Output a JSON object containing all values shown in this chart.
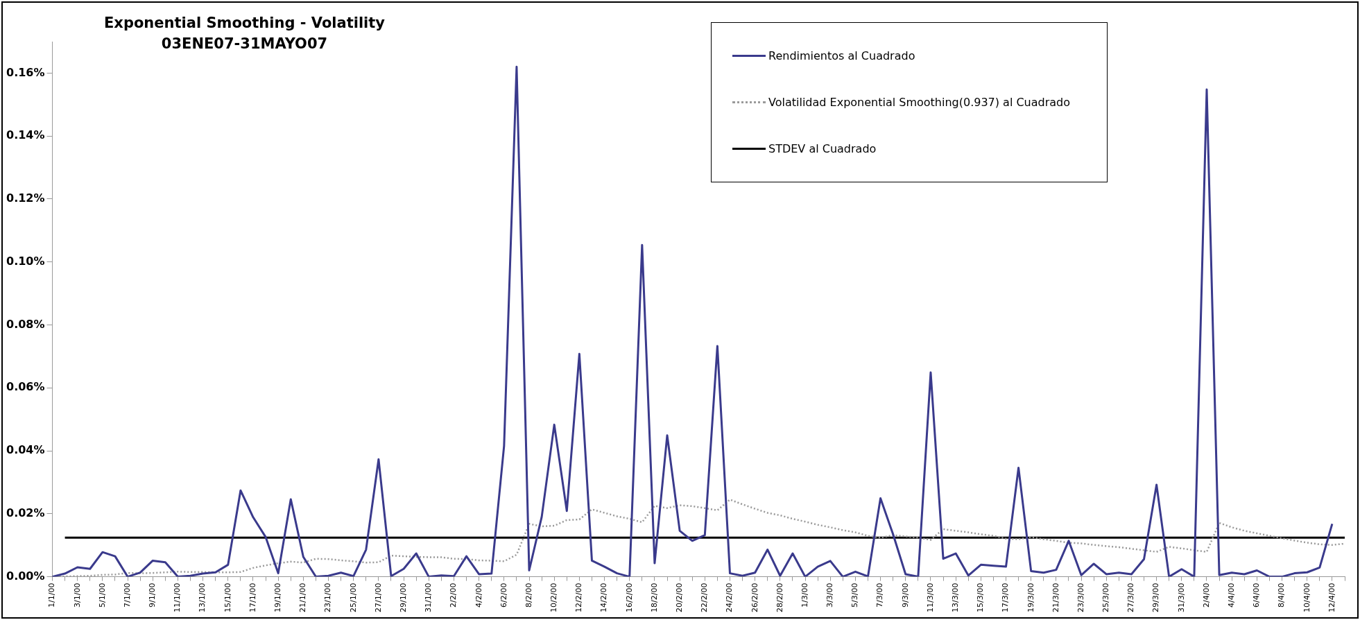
{
  "chart_data": {
    "type": "line",
    "title": "Exponential Smoothing - Volatility",
    "subtitle": "03ENE07-31MAYO07",
    "categories": [
      "1/1/00",
      null,
      "3/1/00",
      null,
      "5/1/00",
      null,
      "7/1/00",
      null,
      "9/1/00",
      null,
      "11/1/00",
      null,
      "13/1/00",
      null,
      "15/1/00",
      null,
      "17/1/00",
      null,
      "19/1/00",
      null,
      "21/1/00",
      null,
      "23/1/00",
      null,
      "25/1/00",
      null,
      "27/1/00",
      null,
      "29/1/00",
      null,
      "31/1/00",
      null,
      "2/2/00",
      null,
      "4/2/00",
      null,
      "6/2/00",
      null,
      "8/2/00",
      null,
      "10/2/00",
      null,
      "12/2/00",
      null,
      "14/2/00",
      null,
      "16/2/00",
      null,
      "18/2/00",
      null,
      "20/2/00",
      null,
      "22/2/00",
      null,
      "24/2/00",
      null,
      "26/2/00",
      null,
      "28/2/00",
      null,
      "1/3/00",
      null,
      "3/3/00",
      null,
      "5/3/00",
      null,
      "7/3/00",
      null,
      "9/3/00",
      null,
      "11/3/00",
      null,
      "13/3/00",
      null,
      "15/3/00",
      null,
      "17/3/00",
      null,
      "19/3/00",
      null,
      "21/3/00",
      null,
      "23/3/00",
      null,
      "25/3/00",
      null,
      "27/3/00",
      null,
      "29/3/00",
      null,
      "31/3/00",
      null,
      "2/4/00",
      null,
      "4/4/00",
      null,
      "6/4/00",
      null,
      "8/4/00",
      null,
      "10/4/00",
      null,
      "12/4/00",
      null
    ],
    "series": [
      {
        "name": "Rendimientos al Cuadrado",
        "color": "#3a3a8c",
        "line_style": "solid",
        "values": [
          0,
          0.001,
          0.003,
          0.0025,
          0.0078,
          0.0065,
          0,
          0.0013,
          0.0051,
          0.0046,
          0,
          0.0003,
          0.001,
          0.0014,
          0.0038,
          0.0274,
          0.0189,
          0.0126,
          0.0011,
          0.0246,
          0.0063,
          0,
          0.0003,
          0.0013,
          0.0002,
          0.0086,
          0.0373,
          0.0002,
          0.0025,
          0.0074,
          0,
          0.0004,
          0.0002,
          0.0065,
          0.0008,
          0.001,
          0.0416,
          0.162,
          0.002,
          0.019,
          0.0483,
          0.0209,
          0.0708,
          0.0051,
          0.0032,
          0.0011,
          0,
          0.1054,
          0.0043,
          0.0449,
          0.0146,
          0.0114,
          0.0132,
          0.0733,
          0.0011,
          0.0003,
          0.0013,
          0.0086,
          0.0003,
          0.0074,
          0,
          0.0032,
          0.005,
          0,
          0.0016,
          0.0001,
          0.0249,
          0.0135,
          0.0008,
          0,
          0.0649,
          0.0057,
          0.0074,
          0.0004,
          0.0038,
          0.0035,
          0.0032,
          0.0346,
          0.0018,
          0.0013,
          0.0022,
          0.0114,
          0.0005,
          0.0041,
          0.0008,
          0.0013,
          0.0008,
          0.0056,
          0.0292,
          0,
          0.0024,
          0,
          0.1548,
          0.0005,
          0.0013,
          0.0008,
          0.002,
          0,
          0,
          0.0011,
          0.0014,
          0.0029,
          0.0168,
          null
        ]
      },
      {
        "name": "Volatilidad Exponential Smoothing(0.937) al Cuadrado",
        "color": "#9a9a9a",
        "line_style": "dotted",
        "values": [
          0.0001,
          0.0001,
          0.0002,
          0.0003,
          0.0006,
          0.0007,
          0.0012,
          0.0011,
          0.0012,
          0.0014,
          0.0016,
          0.0015,
          0.0015,
          0.0014,
          0.0014,
          0.0015,
          0.0028,
          0.0036,
          0.0043,
          0.0048,
          0.0045,
          0.0057,
          0.0056,
          0.0052,
          0.0049,
          0.0045,
          0.0046,
          0.0067,
          0.0065,
          0.0063,
          0.0062,
          0.0062,
          0.0057,
          0.0056,
          0.0052,
          0.0051,
          0.0049,
          0.007,
          0.0168,
          0.016,
          0.0162,
          0.018,
          0.0182,
          0.0214,
          0.0203,
          0.0192,
          0.0184,
          0.0173,
          0.0225,
          0.0218,
          0.0227,
          0.0224,
          0.0218,
          0.0211,
          0.0245,
          0.023,
          0.0216,
          0.0203,
          0.0195,
          0.0184,
          0.0175,
          0.0165,
          0.0157,
          0.0148,
          0.0141,
          0.013,
          0.0124,
          0.0132,
          0.0128,
          0.0124,
          0.0117,
          0.0151,
          0.0146,
          0.0141,
          0.0135,
          0.013,
          0.0121,
          0.0119,
          0.0126,
          0.0119,
          0.0114,
          0.0108,
          0.0106,
          0.0101,
          0.0097,
          0.0094,
          0.0089,
          0.0084,
          0.0079,
          0.0095,
          0.009,
          0.0084,
          0.0079,
          0.0171,
          0.0157,
          0.0146,
          0.0138,
          0.013,
          0.0122,
          0.0115,
          0.0108,
          0.0103,
          0.0101,
          0.0105
        ]
      },
      {
        "name": "STDEV al Cuadrado",
        "color": "#000000",
        "line_style": "solid",
        "values": [
          null,
          0.0124,
          0.0124,
          0.0124,
          0.0124,
          0.0124,
          0.0124,
          0.0124,
          0.0124,
          0.0124,
          0.0124,
          0.0124,
          0.0124,
          0.0124,
          0.0124,
          0.0124,
          0.0124,
          0.0124,
          0.0124,
          0.0124,
          0.0124,
          0.0124,
          0.0124,
          0.0124,
          0.0124,
          0.0124,
          0.0124,
          0.0124,
          0.0124,
          0.0124,
          0.0124,
          0.0124,
          0.0124,
          0.0124,
          0.0124,
          0.0124,
          0.0124,
          0.0124,
          0.0124,
          0.0124,
          0.0124,
          0.0124,
          0.0124,
          0.0124,
          0.0124,
          0.0124,
          0.0124,
          0.0124,
          0.0124,
          0.0124,
          0.0124,
          0.0124,
          0.0124,
          0.0124,
          0.0124,
          0.0124,
          0.0124,
          0.0124,
          0.0124,
          0.0124,
          0.0124,
          0.0124,
          0.0124,
          0.0124,
          0.0124,
          0.0124,
          0.0124,
          0.0124,
          0.0124,
          0.0124,
          0.0124,
          0.0124,
          0.0124,
          0.0124,
          0.0124,
          0.0124,
          0.0124,
          0.0124,
          0.0124,
          0.0124,
          0.0124,
          0.0124,
          0.0124,
          0.0124,
          0.0124,
          0.0124,
          0.0124,
          0.0124,
          0.0124,
          0.0124,
          0.0124,
          0.0124,
          0.0124,
          0.0124,
          0.0124,
          0.0124,
          0.0124,
          0.0124,
          0.0124,
          0.0124,
          0.0124,
          0.0124,
          0.0124,
          0.0124
        ]
      }
    ],
    "ylim": [
      0,
      0.17
    ],
    "yticks": [
      {
        "value": 0,
        "label": "0.00%"
      },
      {
        "value": 0.02,
        "label": "0.02%"
      },
      {
        "value": 0.04,
        "label": "0.04%"
      },
      {
        "value": 0.06,
        "label": "0.06%"
      },
      {
        "value": 0.08,
        "label": "0.08%"
      },
      {
        "value": 0.1,
        "label": "0.10%"
      },
      {
        "value": 0.12,
        "label": "0.12%"
      },
      {
        "value": 0.14,
        "label": "0.14%"
      },
      {
        "value": 0.16,
        "label": "0.16%"
      }
    ],
    "grid": false,
    "legend": "top right",
    "marker": "none"
  }
}
